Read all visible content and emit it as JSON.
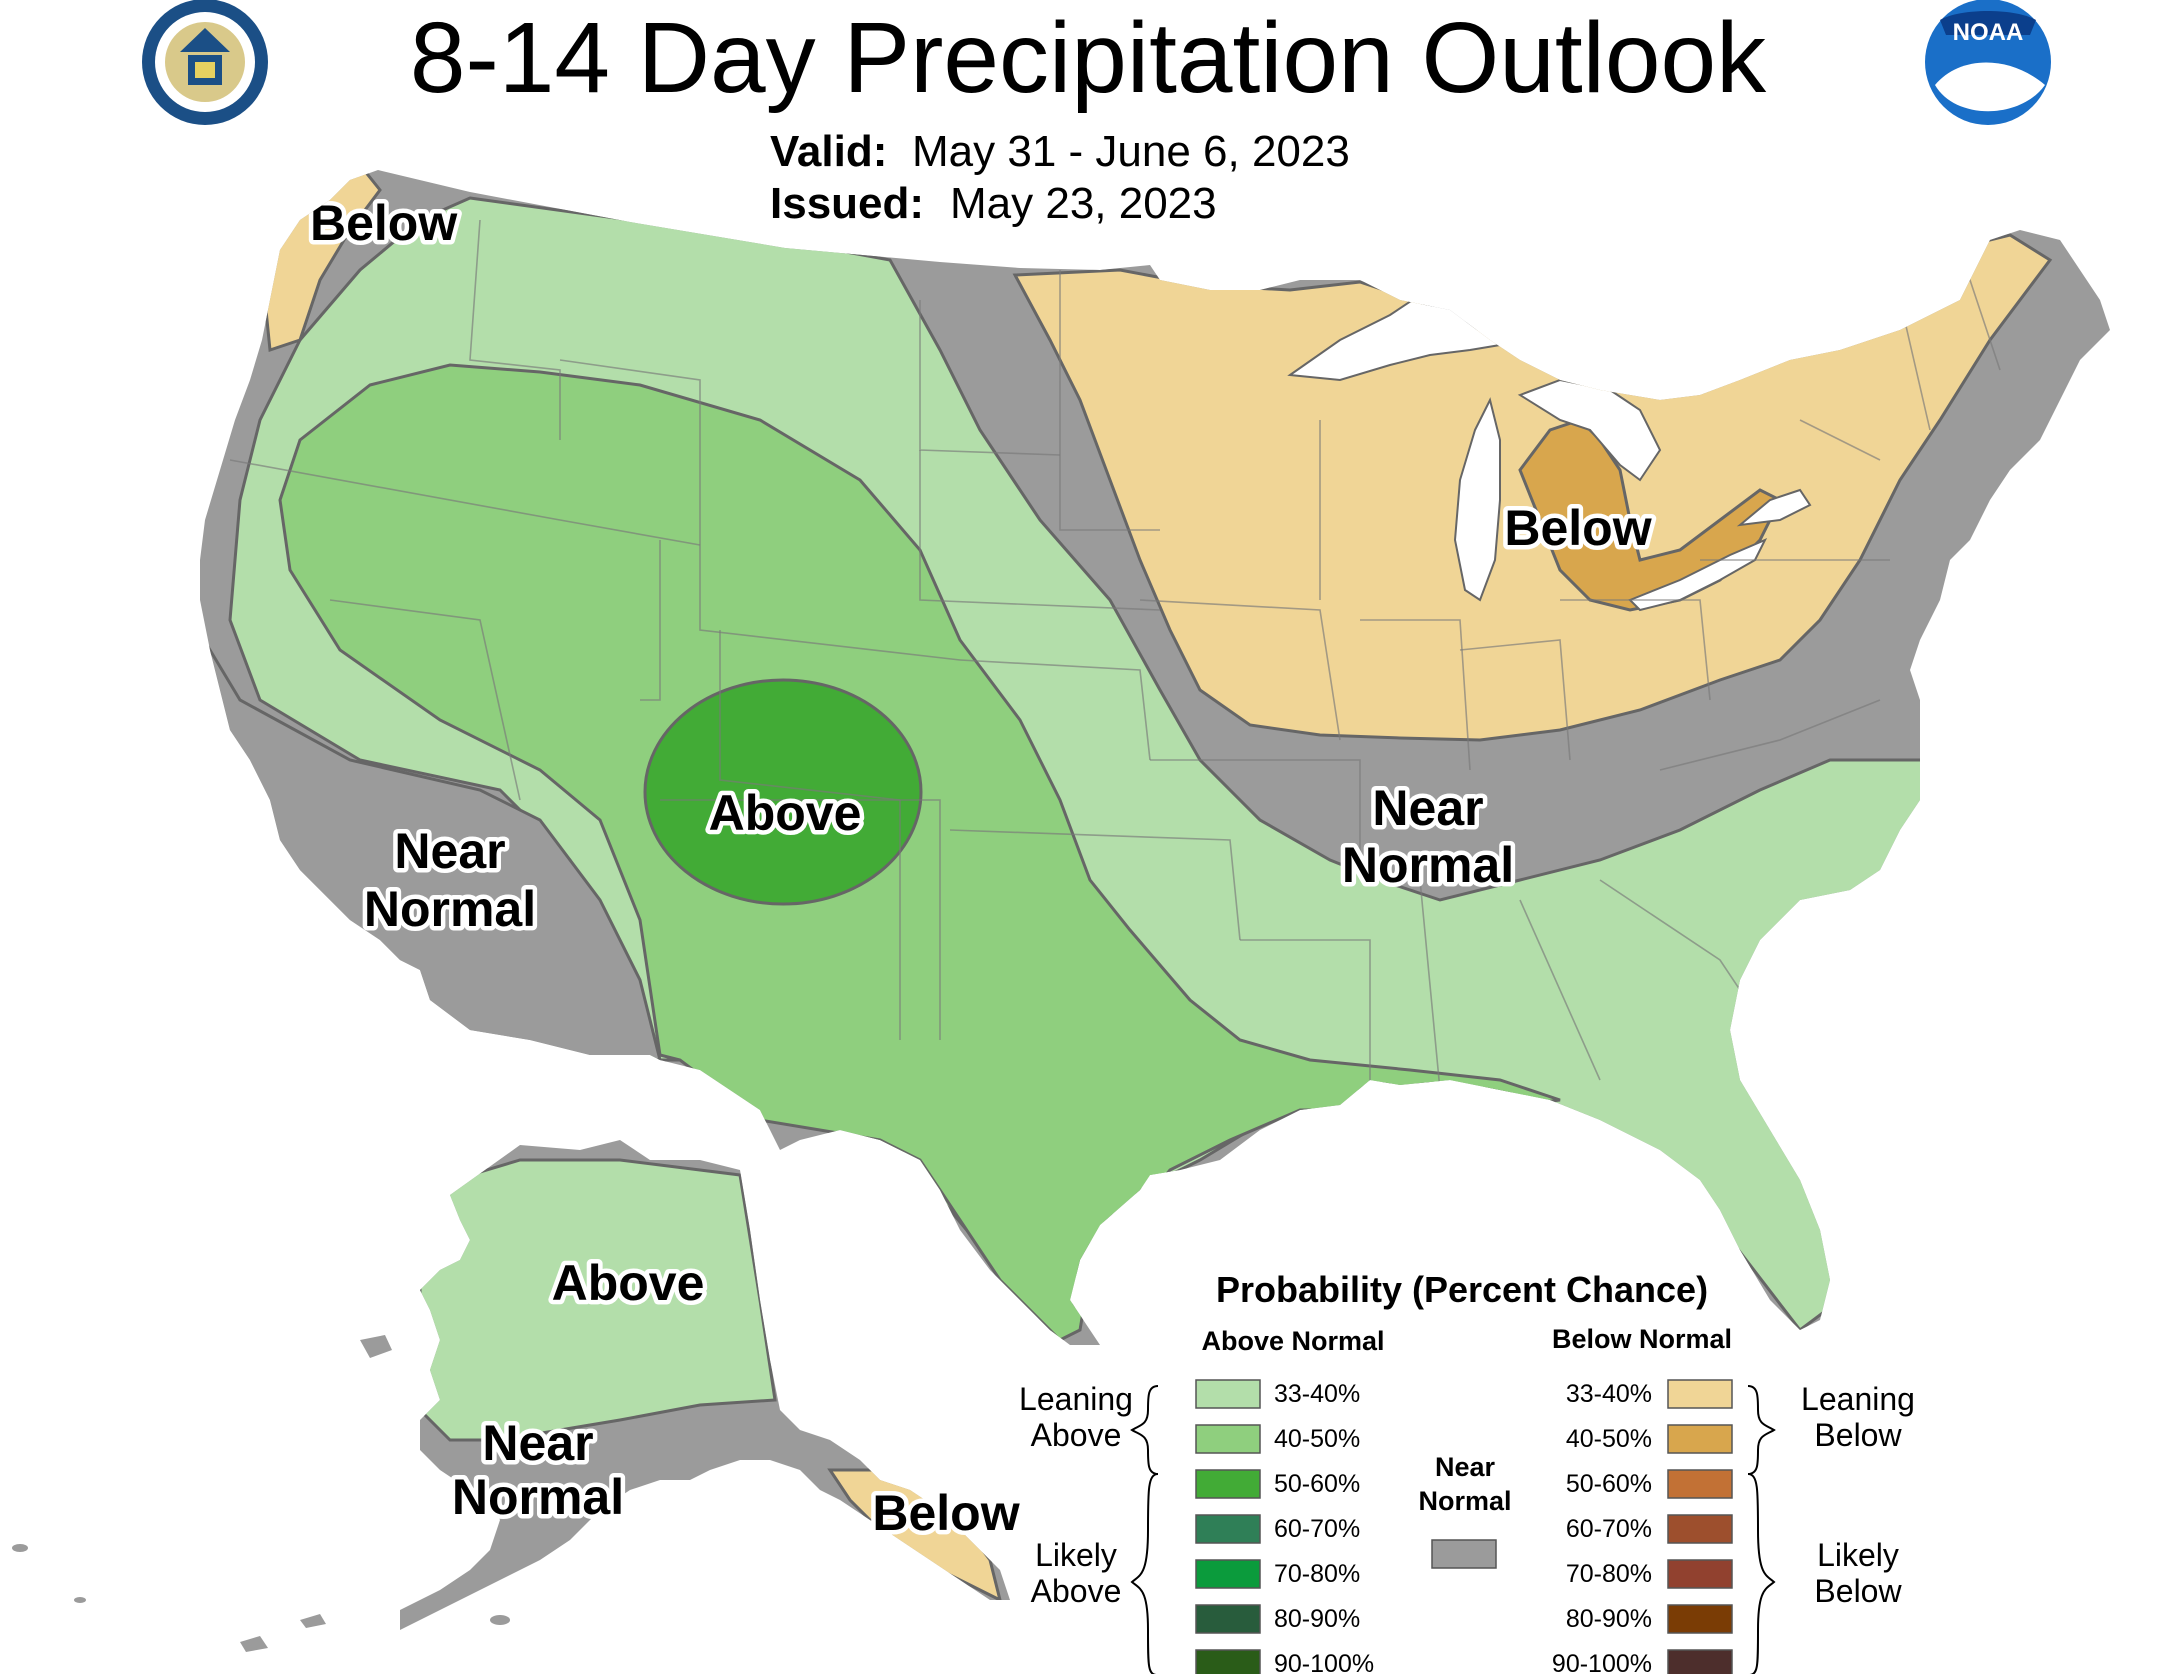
{
  "title": "8-14 Day Precipitation Outlook",
  "valid_label": "Valid:",
  "valid_value": "May 31 - June 6, 2023",
  "issued_label": "Issued:",
  "issued_value": "May 23, 2023",
  "logos": {
    "left": "department-of-commerce-seal",
    "right": "noaa-logo",
    "noaa_text": "NOAA"
  },
  "colors": {
    "water": "#ffffff",
    "near_normal": "#9b9b9b",
    "above_33_40": "#b3deaa",
    "above_40_50": "#8fcf7e",
    "above_50_60": "#42ab36",
    "below_33_40": "#f0d596",
    "below_40_50": "#d8a64d"
  },
  "region_labels": {
    "nw_below": "Below",
    "west_near": [
      "Near",
      "Normal"
    ],
    "sw_above": "Above",
    "glakes_below": "Below",
    "east_near": [
      "Near",
      "Normal"
    ],
    "ak_above": "Above",
    "ak_near": [
      "Near",
      "Normal"
    ],
    "ak_below": "Below"
  },
  "legend": {
    "title": "Probability (Percent Chance)",
    "above_header": "Above Normal",
    "below_header": "Below Normal",
    "leaning_above": [
      "Leaning",
      "Above"
    ],
    "likely_above": [
      "Likely",
      "Above"
    ],
    "leaning_below": [
      "Leaning",
      "Below"
    ],
    "likely_below": [
      "Likely",
      "Below"
    ],
    "near_normal": [
      "Near",
      "Normal"
    ],
    "above_items": [
      {
        "label": "33-40%",
        "color": "#b3deaa"
      },
      {
        "label": "40-50%",
        "color": "#8fcf7e"
      },
      {
        "label": "50-60%",
        "color": "#42ab36"
      },
      {
        "label": "60-70%",
        "color": "#2f7f57"
      },
      {
        "label": "70-80%",
        "color": "#0b9b3c"
      },
      {
        "label": "80-90%",
        "color": "#285c3c"
      },
      {
        "label": "90-100%",
        "color": "#2a5c18"
      }
    ],
    "below_items": [
      {
        "label": "33-40%",
        "color": "#f0d596"
      },
      {
        "label": "40-50%",
        "color": "#d8a64d"
      },
      {
        "label": "50-60%",
        "color": "#c27135"
      },
      {
        "label": "60-70%",
        "color": "#9d4f2d"
      },
      {
        "label": "70-80%",
        "color": "#91412f"
      },
      {
        "label": "80-90%",
        "color": "#7a3c05"
      },
      {
        "label": "90-100%",
        "color": "#4d2e2c"
      }
    ],
    "near_color": "#9b9b9b"
  }
}
